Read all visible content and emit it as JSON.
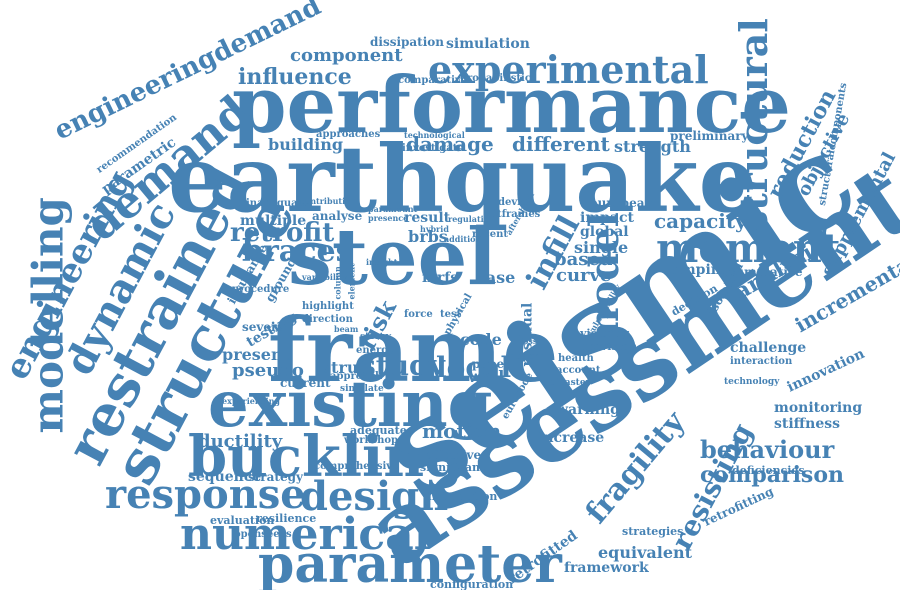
{
  "color": "#4682b4",
  "words": [
    {
      "text": "seismic"
    },
    {
      "text": "assessment"
    },
    {
      "text": "earthquake"
    },
    {
      "text": "frame"
    },
    {
      "text": "performance"
    },
    {
      "text": "steel"
    },
    {
      "text": "existing"
    },
    {
      "text": "structure"
    },
    {
      "text": "restrained"
    },
    {
      "text": "buckling"
    },
    {
      "text": "parameter"
    },
    {
      "text": "numerical"
    },
    {
      "text": "response"
    },
    {
      "text": "design"
    },
    {
      "text": "modelling"
    },
    {
      "text": "dynamic"
    },
    {
      "text": "demand"
    },
    {
      "text": "engineering"
    },
    {
      "text": "moment"
    },
    {
      "text": "model"
    },
    {
      "text": "structural"
    },
    {
      "text": "experimental"
    },
    {
      "text": "braces"
    },
    {
      "text": "retrofit"
    },
    {
      "text": "infill"
    },
    {
      "text": "local"
    },
    {
      "text": "study"
    },
    {
      "text": "fragility"
    },
    {
      "text": "resisting"
    },
    {
      "text": "behaviour"
    },
    {
      "text": "comparison"
    },
    {
      "text": "analysis"
    },
    {
      "text": "incremental"
    },
    {
      "text": "reduction"
    },
    {
      "text": "objective"
    },
    {
      "text": "supplemental"
    },
    {
      "text": "capacity"
    },
    {
      "text": "damage"
    },
    {
      "text": "different"
    },
    {
      "text": "strength"
    },
    {
      "text": "building"
    },
    {
      "text": "influence"
    },
    {
      "text": "component"
    },
    {
      "text": "engineeringdemand"
    },
    {
      "text": "risk"
    },
    {
      "text": "motion"
    },
    {
      "text": "ductility"
    },
    {
      "text": "equivalent"
    },
    {
      "text": "framework"
    },
    {
      "text": "retrofitted"
    },
    {
      "text": "strategy"
    },
    {
      "text": "sequence"
    },
    {
      "text": "pseudo"
    },
    {
      "text": "present"
    },
    {
      "text": "testing"
    },
    {
      "text": "several"
    },
    {
      "text": "ground"
    },
    {
      "text": "insurance"
    },
    {
      "text": "monitoring"
    },
    {
      "text": "stiffness"
    },
    {
      "text": "innovation"
    },
    {
      "text": "challenge"
    },
    {
      "text": "interaction"
    },
    {
      "text": "decision"
    },
    {
      "text": "isolation"
    },
    {
      "text": "damping"
    },
    {
      "text": "cumulative"
    },
    {
      "text": "curve"
    },
    {
      "text": "based"
    },
    {
      "text": "single"
    },
    {
      "text": "global"
    },
    {
      "text": "impact"
    },
    {
      "text": "european"
    },
    {
      "text": "brbs"
    },
    {
      "text": "result"
    },
    {
      "text": "analyse"
    },
    {
      "text": "multiple"
    },
    {
      "text": "inadequate"
    },
    {
      "text": "dissipation"
    },
    {
      "text": "simulation"
    },
    {
      "text": "parametric"
    },
    {
      "text": "recommendation"
    },
    {
      "text": "case"
    },
    {
      "text": "mrfs"
    },
    {
      "text": "strut"
    },
    {
      "text": "wall"
    },
    {
      "text": "paper"
    },
    {
      "text": "code"
    },
    {
      "text": "current"
    },
    {
      "text": "warning"
    },
    {
      "text": "increase"
    },
    {
      "text": "effective"
    },
    {
      "text": "significant"
    },
    {
      "text": "distribution"
    },
    {
      "text": "configuration"
    },
    {
      "text": "strategies"
    },
    {
      "text": "retrofitting"
    },
    {
      "text": "deficiencies"
    },
    {
      "text": "resilience"
    },
    {
      "text": "evaluation"
    },
    {
      "text": "openseees"
    },
    {
      "text": "adequate"
    },
    {
      "text": "workshop"
    },
    {
      "text": "comprehensive"
    },
    {
      "text": "eurocode"
    },
    {
      "text": "residual"
    },
    {
      "text": "yielding"
    },
    {
      "text": "provision"
    },
    {
      "text": "vulnerability"
    },
    {
      "text": "structuralcomponents"
    },
    {
      "text": "preliminary"
    },
    {
      "text": "technological"
    },
    {
      "text": "investigate"
    },
    {
      "text": "comparative"
    },
    {
      "text": "probabilistic"
    },
    {
      "text": "approaches"
    },
    {
      "text": "hitframes"
    },
    {
      "text": "recent"
    },
    {
      "text": "modern"
    },
    {
      "text": "health"
    },
    {
      "text": "account"
    },
    {
      "text": "energy"
    },
    {
      "text": "storey"
    },
    {
      "text": "direction"
    },
    {
      "text": "highlight"
    },
    {
      "text": "procedure"
    },
    {
      "text": "experiencing"
    },
    {
      "text": "approach"
    },
    {
      "text": "simulate"
    },
    {
      "text": "force"
    },
    {
      "text": "test"
    },
    {
      "text": "physical"
    },
    {
      "text": "device"
    },
    {
      "text": "technology"
    },
    {
      "text": "disaster"
    },
    {
      "text": "contribution"
    },
    {
      "text": "presence"
    },
    {
      "text": "paramount"
    },
    {
      "text": "hybrid"
    },
    {
      "text": "addition"
    },
    {
      "text": "insight"
    },
    {
      "text": "variability"
    },
    {
      "text": "beam"
    },
    {
      "text": "column"
    },
    {
      "text": "element"
    },
    {
      "text": "regulation"
    },
    {
      "text": "aftershock"
    },
    {
      "text": "loss"
    }
  ]
}
